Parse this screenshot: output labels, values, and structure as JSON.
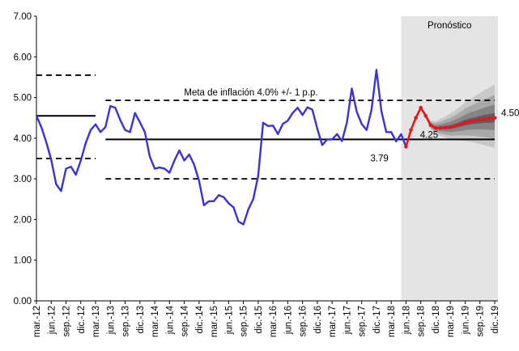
{
  "chart_data": {
    "type": "line",
    "categories": [
      "mar.-12",
      null,
      null,
      "jun.-12",
      null,
      null,
      "sep.-12",
      null,
      null,
      "dic.-12",
      null,
      null,
      "mar.-13",
      null,
      null,
      "jun.-13",
      null,
      null,
      "sep.-13",
      null,
      null,
      "dic.-13",
      null,
      null,
      "mar.-14",
      null,
      null,
      "jun.-14",
      null,
      null,
      "sep.-14",
      null,
      null,
      "dic.-14",
      null,
      null,
      "mar.-15",
      null,
      null,
      "jun.-15",
      null,
      null,
      "sep.-15",
      null,
      null,
      "dic.-15",
      null,
      null,
      "mar.-16",
      null,
      null,
      "jun.-16",
      null,
      null,
      "sep.-16",
      null,
      null,
      "dic.-16",
      null,
      null,
      "mar.-17",
      null,
      null,
      "jun.-17",
      null,
      null,
      "sep.-17",
      null,
      null,
      "dic.-17",
      null,
      null,
      "mar.-18",
      null,
      null,
      "jun.-18",
      null,
      null,
      "sep.-18",
      null,
      null,
      "dic.-18",
      null,
      null,
      "mar.-19",
      null,
      null,
      "jun.-19",
      null,
      null,
      "sep.-19",
      null,
      null,
      "dic.-19"
    ],
    "series": [
      {
        "color": "#3a32d8",
        "values": [
          4.55,
          4.27,
          3.9,
          3.47,
          2.87,
          2.7,
          3.25,
          3.3,
          3.1,
          3.45,
          3.88,
          4.2,
          4.34,
          4.15,
          4.27,
          4.79,
          4.75,
          4.45,
          4.2,
          4.15,
          4.62,
          4.39,
          4.15,
          3.55,
          3.25,
          3.28,
          3.25,
          3.15,
          3.45,
          3.7,
          3.45,
          3.6,
          3.35,
          2.95,
          2.35,
          2.45,
          2.45,
          2.6,
          2.55,
          2.4,
          2.3,
          1.95,
          1.88,
          2.25,
          2.5,
          3.07,
          4.38,
          4.3,
          4.31,
          4.1,
          4.35,
          4.43,
          4.62,
          4.75,
          4.57,
          4.76,
          4.7,
          4.23,
          3.83,
          3.97,
          3.97,
          4.1,
          3.93,
          4.38,
          5.22,
          4.65,
          4.35,
          4.2,
          4.7,
          5.68,
          4.67,
          4.15,
          4.15,
          3.92,
          4.1,
          3.79,
          null,
          null,
          null,
          null,
          null,
          null,
          null,
          null,
          null,
          null,
          null,
          null,
          null,
          null,
          null,
          null,
          null,
          null
        ]
      },
      {
        "color": "#e8141e",
        "values": [
          null,
          null,
          null,
          null,
          null,
          null,
          null,
          null,
          null,
          null,
          null,
          null,
          null,
          null,
          null,
          null,
          null,
          null,
          null,
          null,
          null,
          null,
          null,
          null,
          null,
          null,
          null,
          null,
          null,
          null,
          null,
          null,
          null,
          null,
          null,
          null,
          null,
          null,
          null,
          null,
          null,
          null,
          null,
          null,
          null,
          null,
          null,
          null,
          null,
          null,
          null,
          null,
          null,
          null,
          null,
          null,
          null,
          null,
          null,
          null,
          null,
          null,
          null,
          null,
          null,
          null,
          null,
          null,
          null,
          null,
          null,
          null,
          null,
          null,
          null,
          3.79,
          4.2,
          4.5,
          4.75,
          4.55,
          4.32,
          4.25,
          4.25,
          4.26,
          4.27,
          4.3,
          4.34,
          4.38,
          4.41,
          4.43,
          4.45,
          4.47,
          4.48,
          4.5
        ]
      }
    ],
    "ylim": [
      0,
      7
    ],
    "yticks": [
      {
        "value": 0,
        "label": "0.00"
      },
      {
        "value": 1,
        "label": "1.00"
      },
      {
        "value": 2,
        "label": "2.00"
      },
      {
        "value": 3,
        "label": "3.00"
      },
      {
        "value": 4,
        "label": "4.00"
      },
      {
        "value": 5,
        "label": "5.00"
      },
      {
        "value": 6,
        "label": "6.00"
      },
      {
        "value": 7,
        "label": "7.00"
      }
    ],
    "reference_lines": [
      {
        "value": 4.55,
        "style": "solid",
        "from": "mar.-12",
        "to": "mar.-13"
      },
      {
        "value": 5.55,
        "style": "dashed",
        "from": "mar.-12",
        "to": "mar.-13"
      },
      {
        "value": 3.5,
        "style": "dashed",
        "from": "mar.-12",
        "to": "mar.-13"
      },
      {
        "value": 3.97,
        "style": "solid",
        "from": "jun.-13",
        "to": "dic.-19"
      },
      {
        "value": 4.93,
        "style": "dashed",
        "from": "jun.-13",
        "to": "dic.-19"
      },
      {
        "value": 3.0,
        "style": "dashed",
        "from": "jun.-13",
        "to": "dic.-19"
      }
    ],
    "target_label": "Meta de inflación 4.0% +/- 1 p.p.",
    "forecast_region": {
      "label": "Pronóstico",
      "from": "jun.-18",
      "to": "dic.-19"
    },
    "annotations": [
      {
        "text": "3.79",
        "category": "jun.-18",
        "value": 3.79
      },
      {
        "text": "4.25",
        "category": "dic.-18",
        "value": 4.25
      },
      {
        "text": "4.50",
        "category": "dic.-19",
        "value": 4.5
      }
    ]
  }
}
